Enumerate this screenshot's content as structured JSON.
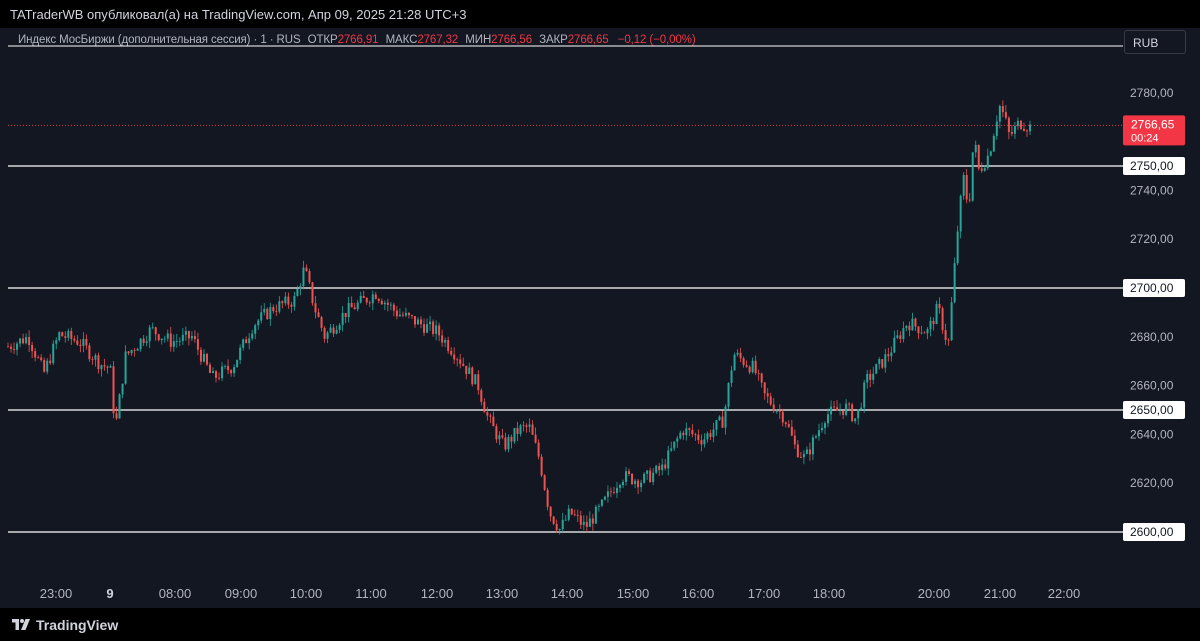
{
  "header": {
    "publisher_text": "TATraderWB опубликовал(а) на TradingView.com, Апр 09, 2025 21:28 UTC+3"
  },
  "legend": {
    "symbol": "Индекс МосБиржи (дополнительная сессия) · 1 · RUS",
    "open_label": "ОТКР",
    "open_value": "2766,91",
    "high_label": "МАКС",
    "high_value": "2767,32",
    "low_label": "МИН",
    "low_value": "2766,56",
    "close_label": "ЗАКР",
    "close_value": "2766,65",
    "change_value": "−0,12 (−0,00%)"
  },
  "currency_button": "RUB",
  "footer": {
    "brand": "TradingView"
  },
  "colors": {
    "up": "#26a69a",
    "down": "#ef5350",
    "background": "#131722",
    "price_tag": "#f23645",
    "level_line": "#ffffff"
  },
  "chart_data": {
    "type": "candlestick",
    "y_axis_ticks": [
      "2780,00",
      "2740,00",
      "2720,00",
      "2680,00",
      "2660,00",
      "2640,00",
      "2620,00"
    ],
    "x_axis_ticks": [
      "23:00",
      "9",
      "08:00",
      "09:00",
      "10:00",
      "11:00",
      "12:00",
      "13:00",
      "14:00",
      "15:00",
      "16:00",
      "17:00",
      "18:00",
      "20:00",
      "21:00",
      "22:00"
    ],
    "ylim": [
      2588,
      2790
    ],
    "horizontal_levels": [
      {
        "value": 2750,
        "label": "2750,00"
      },
      {
        "value": 2700,
        "label": "2700,00"
      },
      {
        "value": 2650,
        "label": "2650,00"
      },
      {
        "value": 2600,
        "label": "2600,00"
      }
    ],
    "current_price": {
      "value": 2766.65,
      "label": "2766,65",
      "countdown": "00:24"
    },
    "series_path": [
      [
        0,
        2676
      ],
      [
        0.02,
        2680
      ],
      [
        0.035,
        2665
      ],
      [
        0.05,
        2681
      ],
      [
        0.07,
        2678
      ],
      [
        0.09,
        2669
      ],
      [
        0.1,
        2667
      ],
      [
        0.105,
        2642
      ],
      [
        0.115,
        2672
      ],
      [
        0.14,
        2683
      ],
      [
        0.16,
        2678
      ],
      [
        0.18,
        2680
      ],
      [
        0.2,
        2663
      ],
      [
        0.22,
        2668
      ],
      [
        0.24,
        2685
      ],
      [
        0.26,
        2692
      ],
      [
        0.28,
        2695
      ],
      [
        0.29,
        2708
      ],
      [
        0.3,
        2692
      ],
      [
        0.31,
        2680
      ],
      [
        0.33,
        2690
      ],
      [
        0.36,
        2698
      ],
      [
        0.38,
        2690
      ],
      [
        0.4,
        2686
      ],
      [
        0.42,
        2682
      ],
      [
        0.44,
        2672
      ],
      [
        0.46,
        2660
      ],
      [
        0.47,
        2646
      ],
      [
        0.485,
        2635
      ],
      [
        0.5,
        2642
      ],
      [
        0.51,
        2643
      ],
      [
        0.52,
        2630
      ],
      [
        0.53,
        2608
      ],
      [
        0.54,
        2601
      ],
      [
        0.55,
        2608
      ],
      [
        0.565,
        2602
      ],
      [
        0.58,
        2610
      ],
      [
        0.6,
        2623
      ],
      [
        0.62,
        2621
      ],
      [
        0.64,
        2626
      ],
      [
        0.66,
        2642
      ],
      [
        0.68,
        2638
      ],
      [
        0.7,
        2646
      ],
      [
        0.71,
        2673
      ],
      [
        0.73,
        2667
      ],
      [
        0.74,
        2656
      ],
      [
        0.76,
        2647
      ],
      [
        0.77,
        2635
      ],
      [
        0.78,
        2630
      ],
      [
        0.8,
        2648
      ],
      [
        0.82,
        2651
      ],
      [
        0.83,
        2646
      ],
      [
        0.84,
        2662
      ],
      [
        0.86,
        2672
      ],
      [
        0.88,
        2686
      ],
      [
        0.9,
        2682
      ],
      [
        0.91,
        2692
      ],
      [
        0.92,
        2676
      ],
      [
        0.925,
        2702
      ],
      [
        0.93,
        2728
      ],
      [
        0.935,
        2745
      ],
      [
        0.94,
        2732
      ],
      [
        0.945,
        2762
      ],
      [
        0.95,
        2748
      ],
      [
        0.96,
        2755
      ],
      [
        0.97,
        2775
      ],
      [
        0.975,
        2770
      ],
      [
        0.98,
        2762
      ],
      [
        0.99,
        2768
      ],
      [
        1.0,
        2766
      ]
    ]
  }
}
